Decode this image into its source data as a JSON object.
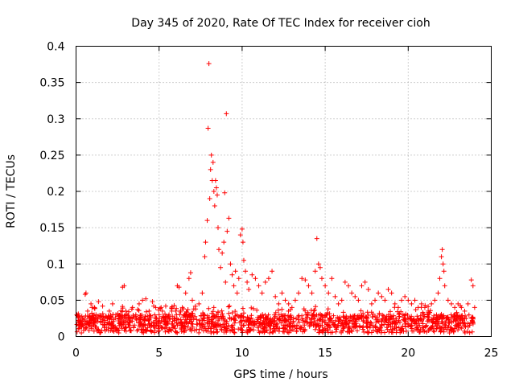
{
  "chart_data": {
    "type": "scatter",
    "title": "Day 345 of 2020, Rate Of TEC Index for receiver cioh",
    "xlabel": "GPS time / hours",
    "ylabel": "ROTI / TECUs",
    "xlim": [
      0,
      25
    ],
    "ylim": [
      0,
      0.4
    ],
    "grid": true,
    "marker": "+",
    "color": "#ff0000",
    "x_ticks": [
      0,
      5,
      10,
      15,
      20,
      25
    ],
    "x_tick_labels": [
      "0",
      "5",
      "10",
      "15",
      "20",
      "25"
    ],
    "y_ticks": [
      0,
      0.05,
      0.1,
      0.15,
      0.2,
      0.25,
      0.3,
      0.35,
      0.4
    ],
    "y_tick_labels": [
      "0",
      "0.05",
      "0.1",
      "0.15",
      "0.2",
      "0.25",
      "0.3",
      "0.35",
      "0.4"
    ],
    "series": [
      {
        "name": "ROTI",
        "points": [
          [
            0.05,
            0.03
          ],
          [
            0.15,
            0.022
          ],
          [
            0.25,
            0.018
          ],
          [
            0.35,
            0.028
          ],
          [
            0.45,
            0.015
          ],
          [
            0.55,
            0.058
          ],
          [
            0.6,
            0.06
          ],
          [
            0.7,
            0.035
          ],
          [
            0.8,
            0.02
          ],
          [
            0.9,
            0.045
          ],
          [
            1.0,
            0.025
          ],
          [
            1.1,
            0.04
          ],
          [
            1.2,
            0.03
          ],
          [
            1.35,
            0.048
          ],
          [
            1.5,
            0.02
          ],
          [
            1.6,
            0.042
          ],
          [
            1.8,
            0.028
          ],
          [
            2.0,
            0.035
          ],
          [
            2.2,
            0.045
          ],
          [
            2.4,
            0.03
          ],
          [
            2.6,
            0.025
          ],
          [
            2.8,
            0.068
          ],
          [
            2.9,
            0.07
          ],
          [
            3.0,
            0.035
          ],
          [
            3.2,
            0.02
          ],
          [
            3.4,
            0.04
          ],
          [
            3.6,
            0.03
          ],
          [
            3.8,
            0.045
          ],
          [
            4.0,
            0.05
          ],
          [
            4.2,
            0.052
          ],
          [
            4.4,
            0.035
          ],
          [
            4.6,
            0.048
          ],
          [
            4.8,
            0.04
          ],
          [
            5.0,
            0.03
          ],
          [
            5.2,
            0.035
          ],
          [
            5.4,
            0.042
          ],
          [
            5.6,
            0.03
          ],
          [
            5.8,
            0.028
          ],
          [
            6.0,
            0.035
          ],
          [
            6.1,
            0.07
          ],
          [
            6.2,
            0.068
          ],
          [
            6.4,
            0.04
          ],
          [
            6.6,
            0.06
          ],
          [
            6.8,
            0.08
          ],
          [
            6.9,
            0.088
          ],
          [
            7.0,
            0.05
          ],
          [
            7.2,
            0.038
          ],
          [
            7.4,
            0.045
          ],
          [
            7.6,
            0.06
          ],
          [
            7.75,
            0.11
          ],
          [
            7.8,
            0.13
          ],
          [
            7.9,
            0.16
          ],
          [
            7.95,
            0.287
          ],
          [
            8.0,
            0.376
          ],
          [
            8.05,
            0.19
          ],
          [
            8.1,
            0.23
          ],
          [
            8.15,
            0.25
          ],
          [
            8.2,
            0.215
          ],
          [
            8.25,
            0.24
          ],
          [
            8.3,
            0.2
          ],
          [
            8.35,
            0.18
          ],
          [
            8.4,
            0.215
          ],
          [
            8.45,
            0.205
          ],
          [
            8.5,
            0.195
          ],
          [
            8.55,
            0.15
          ],
          [
            8.6,
            0.12
          ],
          [
            8.7,
            0.095
          ],
          [
            8.8,
            0.115
          ],
          [
            8.9,
            0.13
          ],
          [
            8.95,
            0.198
          ],
          [
            9.0,
            0.075
          ],
          [
            9.05,
            0.307
          ],
          [
            9.1,
            0.145
          ],
          [
            9.2,
            0.163
          ],
          [
            9.3,
            0.1
          ],
          [
            9.4,
            0.085
          ],
          [
            9.5,
            0.07
          ],
          [
            9.6,
            0.09
          ],
          [
            9.7,
            0.06
          ],
          [
            9.8,
            0.08
          ],
          [
            9.9,
            0.14
          ],
          [
            10.0,
            0.148
          ],
          [
            10.05,
            0.13
          ],
          [
            10.1,
            0.105
          ],
          [
            10.2,
            0.09
          ],
          [
            10.3,
            0.075
          ],
          [
            10.4,
            0.065
          ],
          [
            10.6,
            0.085
          ],
          [
            10.8,
            0.08
          ],
          [
            11.0,
            0.07
          ],
          [
            11.2,
            0.06
          ],
          [
            11.4,
            0.075
          ],
          [
            11.6,
            0.08
          ],
          [
            11.8,
            0.09
          ],
          [
            12.0,
            0.055
          ],
          [
            12.2,
            0.045
          ],
          [
            12.4,
            0.06
          ],
          [
            12.6,
            0.05
          ],
          [
            12.8,
            0.045
          ],
          [
            13.0,
            0.04
          ],
          [
            13.2,
            0.05
          ],
          [
            13.4,
            0.06
          ],
          [
            13.6,
            0.08
          ],
          [
            13.8,
            0.078
          ],
          [
            14.0,
            0.07
          ],
          [
            14.2,
            0.06
          ],
          [
            14.4,
            0.09
          ],
          [
            14.5,
            0.135
          ],
          [
            14.6,
            0.1
          ],
          [
            14.7,
            0.095
          ],
          [
            14.8,
            0.08
          ],
          [
            15.0,
            0.07
          ],
          [
            15.2,
            0.06
          ],
          [
            15.4,
            0.08
          ],
          [
            15.6,
            0.055
          ],
          [
            15.8,
            0.045
          ],
          [
            16.0,
            0.05
          ],
          [
            16.2,
            0.075
          ],
          [
            16.4,
            0.07
          ],
          [
            16.6,
            0.06
          ],
          [
            16.8,
            0.055
          ],
          [
            17.0,
            0.05
          ],
          [
            17.2,
            0.07
          ],
          [
            17.4,
            0.075
          ],
          [
            17.6,
            0.065
          ],
          [
            17.8,
            0.045
          ],
          [
            18.0,
            0.05
          ],
          [
            18.2,
            0.06
          ],
          [
            18.4,
            0.055
          ],
          [
            18.6,
            0.05
          ],
          [
            18.8,
            0.065
          ],
          [
            19.0,
            0.06
          ],
          [
            19.2,
            0.045
          ],
          [
            19.4,
            0.04
          ],
          [
            19.6,
            0.05
          ],
          [
            19.8,
            0.055
          ],
          [
            20.0,
            0.05
          ],
          [
            20.2,
            0.045
          ],
          [
            20.4,
            0.05
          ],
          [
            20.6,
            0.04
          ],
          [
            20.8,
            0.045
          ],
          [
            21.0,
            0.04
          ],
          [
            21.2,
            0.035
          ],
          [
            21.4,
            0.045
          ],
          [
            21.6,
            0.05
          ],
          [
            21.8,
            0.06
          ],
          [
            21.9,
            0.08
          ],
          [
            22.0,
            0.11
          ],
          [
            22.05,
            0.12
          ],
          [
            22.1,
            0.1
          ],
          [
            22.15,
            0.09
          ],
          [
            22.2,
            0.07
          ],
          [
            22.4,
            0.05
          ],
          [
            22.6,
            0.045
          ],
          [
            22.8,
            0.04
          ],
          [
            23.0,
            0.045
          ],
          [
            23.2,
            0.04
          ],
          [
            23.4,
            0.035
          ],
          [
            23.6,
            0.045
          ],
          [
            23.8,
            0.078
          ],
          [
            23.9,
            0.07
          ],
          [
            24.0,
            0.04
          ]
        ],
        "background_band": [
          0.005,
          0.03
        ]
      }
    ]
  }
}
